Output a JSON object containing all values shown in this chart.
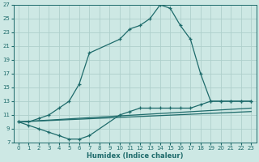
{
  "xlabel": "Humidex (Indice chaleur)",
  "ylabel": "",
  "xlim": [
    -0.5,
    23.5
  ],
  "ylim": [
    7,
    27
  ],
  "xticks": [
    0,
    1,
    2,
    3,
    4,
    5,
    6,
    7,
    8,
    9,
    10,
    11,
    12,
    13,
    14,
    15,
    16,
    17,
    18,
    19,
    20,
    21,
    22,
    23
  ],
  "yticks": [
    7,
    9,
    11,
    13,
    15,
    17,
    19,
    21,
    23,
    25,
    27
  ],
  "bg_color": "#cde8e4",
  "grid_color": "#aed0cc",
  "line_color": "#1e6b6b",
  "lines": [
    {
      "x": [
        0,
        1,
        2,
        3,
        4,
        5,
        6,
        7,
        10,
        11,
        12,
        13,
        14,
        15,
        16,
        17,
        18,
        19,
        20,
        21,
        22,
        23
      ],
      "y": [
        10,
        10,
        10.5,
        11,
        12,
        13,
        15.5,
        20,
        22,
        23.5,
        24,
        25,
        27,
        26.5,
        24,
        22,
        17,
        13,
        13,
        13,
        13,
        13
      ],
      "marker": true
    },
    {
      "x": [
        0,
        1,
        2,
        3,
        4,
        5,
        6,
        7,
        10,
        11,
        12,
        13,
        14,
        15,
        16,
        17,
        18,
        19,
        20,
        21,
        22,
        23
      ],
      "y": [
        10,
        9.5,
        9,
        8.5,
        8,
        7.5,
        7.5,
        8,
        11,
        11.5,
        12,
        12,
        12,
        12,
        12,
        12,
        12.5,
        13,
        13,
        13,
        13,
        13
      ],
      "marker": false
    },
    {
      "x": [
        0,
        23
      ],
      "y": [
        10,
        12
      ],
      "marker": false
    },
    {
      "x": [
        0,
        23
      ],
      "y": [
        10,
        11.5
      ],
      "marker": false
    }
  ]
}
